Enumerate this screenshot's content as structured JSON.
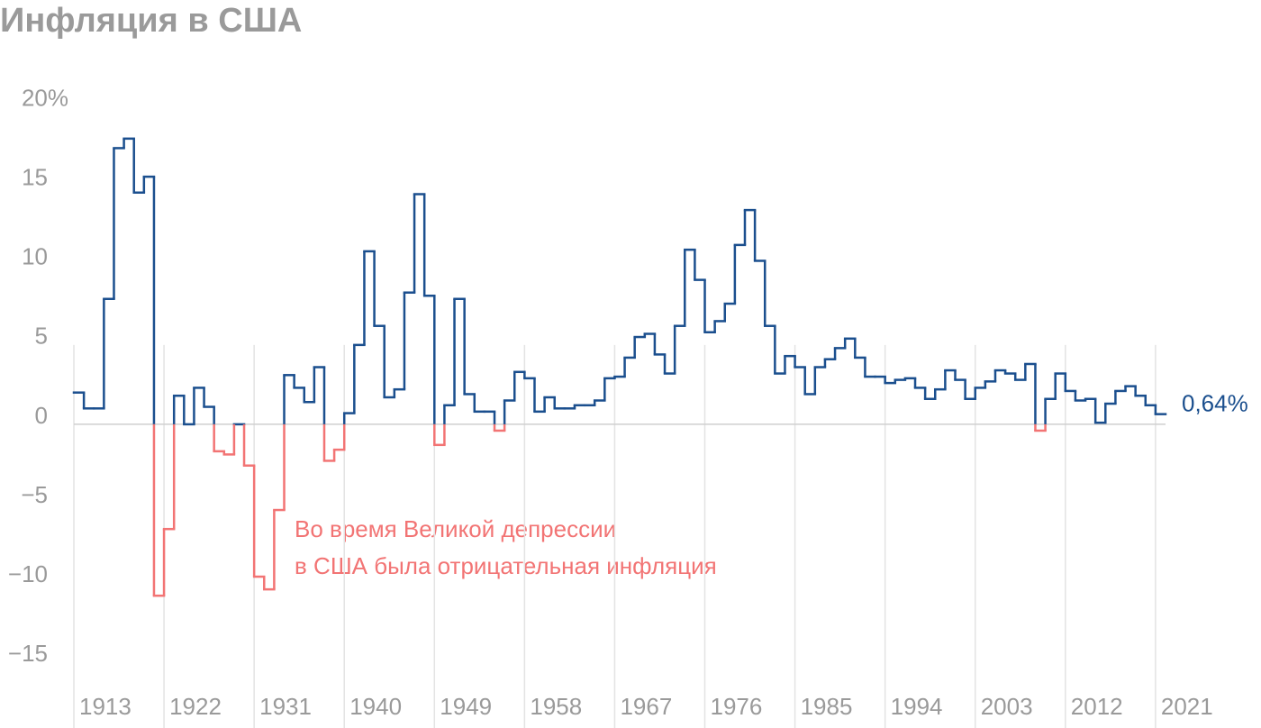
{
  "chart_data": {
    "type": "step",
    "title": "Инфляция в США",
    "x": [
      1913,
      1914,
      1915,
      1916,
      1917,
      1918,
      1919,
      1920,
      1921,
      1922,
      1923,
      1924,
      1925,
      1926,
      1927,
      1928,
      1929,
      1930,
      1931,
      1932,
      1933,
      1934,
      1935,
      1936,
      1937,
      1938,
      1939,
      1940,
      1941,
      1942,
      1943,
      1944,
      1945,
      1946,
      1947,
      1948,
      1949,
      1950,
      1951,
      1952,
      1953,
      1954,
      1955,
      1956,
      1957,
      1958,
      1959,
      1960,
      1961,
      1962,
      1963,
      1964,
      1965,
      1966,
      1967,
      1968,
      1969,
      1970,
      1971,
      1972,
      1973,
      1974,
      1975,
      1976,
      1977,
      1978,
      1979,
      1980,
      1981,
      1982,
      1983,
      1984,
      1985,
      1986,
      1987,
      1988,
      1989,
      1990,
      1991,
      1992,
      1993,
      1994,
      1995,
      1996,
      1997,
      1998,
      1999,
      2000,
      2001,
      2002,
      2003,
      2004,
      2005,
      2006,
      2007,
      2008,
      2009,
      2010,
      2011,
      2012,
      2013,
      2014,
      2015,
      2016,
      2017,
      2018,
      2019,
      2020,
      2021
    ],
    "values": [
      2.0,
      1.0,
      1.0,
      7.9,
      17.4,
      18.0,
      14.6,
      15.6,
      -10.8,
      -6.6,
      1.8,
      0.0,
      2.3,
      1.1,
      -1.7,
      -1.9,
      0.0,
      -2.6,
      -9.6,
      -10.4,
      -5.4,
      3.1,
      2.3,
      1.4,
      3.6,
      -2.3,
      -1.6,
      0.7,
      5.0,
      10.9,
      6.2,
      1.7,
      2.2,
      8.3,
      14.5,
      8.1,
      -1.3,
      1.2,
      7.9,
      1.9,
      0.8,
      0.8,
      -0.4,
      1.5,
      3.3,
      2.9,
      0.8,
      1.7,
      1.0,
      1.0,
      1.2,
      1.2,
      1.5,
      2.9,
      3.0,
      4.2,
      5.5,
      5.7,
      4.4,
      3.2,
      6.2,
      11.0,
      9.1,
      5.8,
      6.5,
      7.6,
      11.3,
      13.5,
      10.3,
      6.2,
      3.2,
      4.3,
      3.6,
      1.9,
      3.6,
      4.1,
      4.8,
      5.4,
      4.2,
      3.0,
      3.0,
      2.6,
      2.8,
      2.9,
      2.3,
      1.6,
      2.2,
      3.4,
      2.8,
      1.6,
      2.3,
      2.7,
      3.4,
      3.2,
      2.8,
      3.8,
      -0.4,
      1.6,
      3.2,
      2.1,
      1.5,
      1.6,
      0.1,
      1.3,
      2.1,
      2.4,
      1.8,
      1.2,
      0.64
    ],
    "value_labels": [
      null,
      null,
      null,
      null,
      null,
      null,
      null,
      null,
      null,
      null,
      null,
      null,
      null,
      null,
      null,
      null,
      null,
      null,
      null,
      null,
      null,
      null,
      null,
      null,
      null,
      null,
      null,
      null,
      null,
      null,
      null,
      null,
      null,
      null,
      null,
      null,
      null,
      null,
      null,
      null,
      null,
      null,
      null,
      null,
      null,
      null,
      null,
      null,
      null,
      null,
      null,
      null,
      null,
      null,
      null,
      null,
      null,
      null,
      null,
      null,
      null,
      null,
      null,
      null,
      null,
      null,
      null,
      null,
      null,
      null,
      null,
      null,
      null,
      null,
      null,
      null,
      null,
      null,
      null,
      null,
      null,
      null,
      null,
      null,
      null,
      null,
      null,
      null,
      null,
      null,
      null,
      null,
      null,
      null,
      null,
      null,
      null,
      null,
      null,
      null,
      null,
      null,
      null,
      null,
      null,
      null,
      null,
      null,
      "0,64%"
    ],
    "colors": {
      "positive": "#1b4f8e",
      "negative": "#f27474"
    },
    "xlim": [
      1913,
      2022
    ],
    "xticks": [
      1913,
      1922,
      1931,
      1940,
      1949,
      1958,
      1967,
      1976,
      1985,
      1994,
      2003,
      2012,
      2021
    ],
    "ylim": [
      -18,
      21
    ],
    "yticks": [
      {
        "value": 20,
        "label": "20%"
      },
      15,
      10,
      5,
      0,
      {
        "value": -5,
        "label": "−5"
      },
      {
        "value": -10,
        "label": "−10"
      },
      {
        "value": -15,
        "label": "−15"
      }
    ],
    "grid": true,
    "annotations": [
      "Во время Великой депрессии",
      "в США была отрицательная инфляция"
    ]
  }
}
